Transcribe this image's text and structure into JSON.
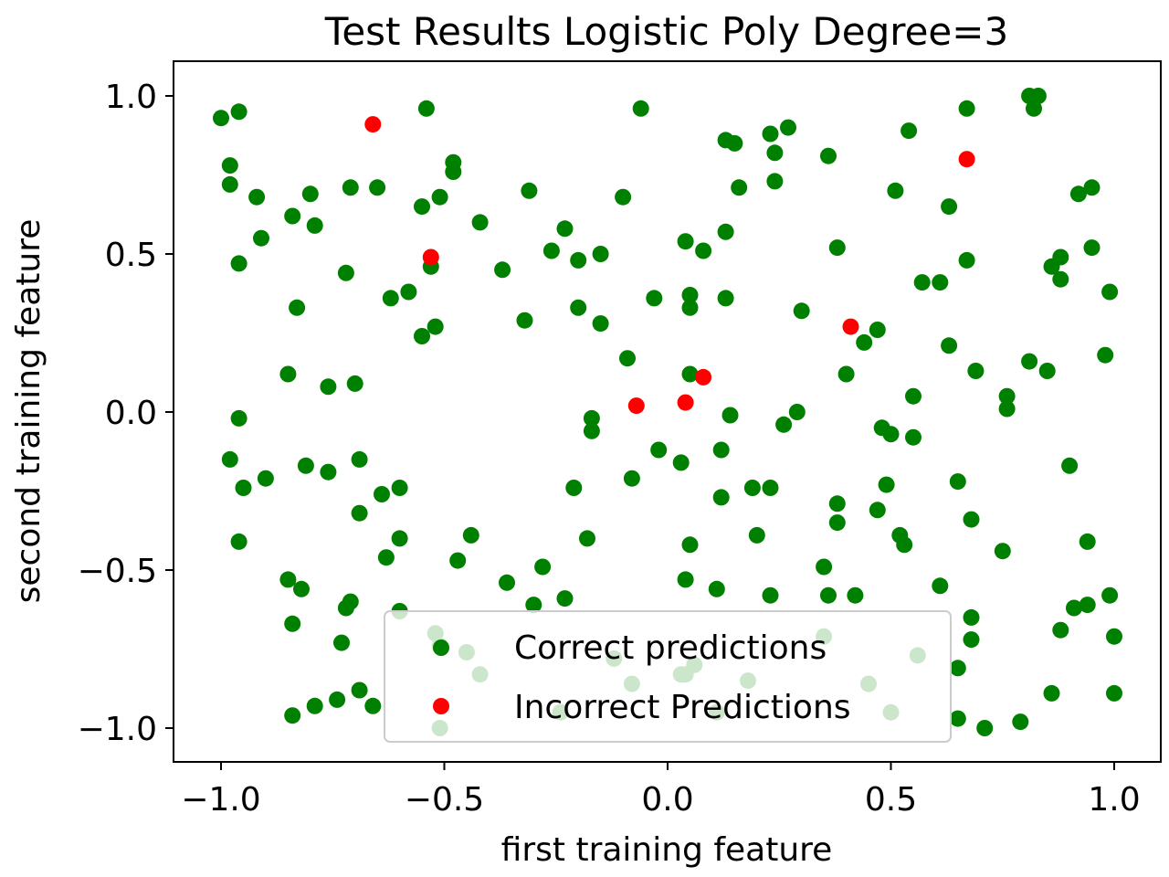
{
  "chart_data": {
    "type": "scatter",
    "title": "Test Results Logistic Poly Degree=3",
    "xlabel": "first training feature",
    "ylabel": "second training feature",
    "xlim": [
      -1.1,
      1.11
    ],
    "ylim": [
      -1.11,
      1.11
    ],
    "xticks": [
      -1.0,
      -0.5,
      0.0,
      0.5,
      1.0
    ],
    "xtick_labels": [
      "−1.0",
      "−0.5",
      "0.0",
      "0.5",
      "1.0"
    ],
    "yticks": [
      -1.0,
      -0.5,
      0.0,
      0.5,
      1.0
    ],
    "ytick_labels": [
      "−1.0",
      "−0.5",
      "0.0",
      "0.5",
      "1.0"
    ],
    "grid": false,
    "legend_position": "bottom-center",
    "series": [
      {
        "name": "Correct predictions",
        "color": "#008000",
        "points": [
          [
            -1.0,
            0.93
          ],
          [
            -0.96,
            0.95
          ],
          [
            -0.54,
            0.96
          ],
          [
            -0.06,
            0.96
          ],
          [
            0.67,
            0.96
          ],
          [
            0.81,
            1.0
          ],
          [
            0.83,
            1.0
          ],
          [
            0.82,
            0.96
          ],
          [
            0.13,
            0.86
          ],
          [
            0.15,
            0.85
          ],
          [
            0.23,
            0.88
          ],
          [
            0.27,
            0.9
          ],
          [
            0.24,
            0.82
          ],
          [
            0.54,
            0.89
          ],
          [
            0.36,
            0.81
          ],
          [
            -0.98,
            0.78
          ],
          [
            -0.48,
            0.79
          ],
          [
            -0.48,
            0.76
          ],
          [
            -0.98,
            0.72
          ],
          [
            -0.92,
            0.68
          ],
          [
            -0.8,
            0.69
          ],
          [
            -0.71,
            0.71
          ],
          [
            -0.65,
            0.71
          ],
          [
            -0.31,
            0.7
          ],
          [
            -0.51,
            0.68
          ],
          [
            -0.55,
            0.65
          ],
          [
            -0.1,
            0.68
          ],
          [
            0.24,
            0.73
          ],
          [
            0.16,
            0.71
          ],
          [
            0.51,
            0.7
          ],
          [
            0.95,
            0.71
          ],
          [
            0.92,
            0.69
          ],
          [
            0.63,
            0.65
          ],
          [
            -0.84,
            0.62
          ],
          [
            -0.79,
            0.59
          ],
          [
            -0.42,
            0.6
          ],
          [
            -0.23,
            0.58
          ],
          [
            -0.91,
            0.55
          ],
          [
            0.04,
            0.54
          ],
          [
            0.13,
            0.57
          ],
          [
            -0.26,
            0.51
          ],
          [
            -0.15,
            0.5
          ],
          [
            0.08,
            0.51
          ],
          [
            0.38,
            0.52
          ],
          [
            0.95,
            0.52
          ],
          [
            -0.96,
            0.47
          ],
          [
            -0.72,
            0.44
          ],
          [
            -0.53,
            0.46
          ],
          [
            -0.37,
            0.45
          ],
          [
            -0.2,
            0.48
          ],
          [
            0.67,
            0.48
          ],
          [
            0.88,
            0.49
          ],
          [
            0.86,
            0.46
          ],
          [
            0.88,
            0.42
          ],
          [
            0.57,
            0.41
          ],
          [
            0.61,
            0.41
          ],
          [
            -0.62,
            0.36
          ],
          [
            -0.58,
            0.38
          ],
          [
            -0.83,
            0.33
          ],
          [
            -0.2,
            0.33
          ],
          [
            -0.03,
            0.36
          ],
          [
            0.05,
            0.37
          ],
          [
            0.05,
            0.33
          ],
          [
            0.13,
            0.36
          ],
          [
            0.3,
            0.32
          ],
          [
            0.99,
            0.38
          ],
          [
            -0.32,
            0.29
          ],
          [
            -0.15,
            0.28
          ],
          [
            -0.52,
            0.27
          ],
          [
            -0.55,
            0.24
          ],
          [
            0.47,
            0.26
          ],
          [
            0.44,
            0.22
          ],
          [
            0.63,
            0.21
          ],
          [
            -0.85,
            0.12
          ],
          [
            -0.7,
            0.09
          ],
          [
            -0.76,
            0.08
          ],
          [
            -0.09,
            0.17
          ],
          [
            0.05,
            0.12
          ],
          [
            0.4,
            0.12
          ],
          [
            0.81,
            0.16
          ],
          [
            0.85,
            0.13
          ],
          [
            0.69,
            0.13
          ],
          [
            0.98,
            0.18
          ],
          [
            -0.96,
            -0.02
          ],
          [
            -0.17,
            -0.02
          ],
          [
            -0.17,
            -0.06
          ],
          [
            0.14,
            -0.01
          ],
          [
            0.26,
            -0.04
          ],
          [
            0.29,
            0.0
          ],
          [
            0.55,
            0.05
          ],
          [
            0.76,
            0.05
          ],
          [
            0.76,
            0.01
          ],
          [
            -0.98,
            -0.15
          ],
          [
            -0.69,
            -0.15
          ],
          [
            -0.81,
            -0.17
          ],
          [
            -0.76,
            -0.19
          ],
          [
            -0.9,
            -0.21
          ],
          [
            -0.95,
            -0.24
          ],
          [
            -0.02,
            -0.12
          ],
          [
            0.03,
            -0.16
          ],
          [
            0.12,
            -0.12
          ],
          [
            0.48,
            -0.05
          ],
          [
            0.5,
            -0.07
          ],
          [
            0.55,
            -0.08
          ],
          [
            -0.08,
            -0.21
          ],
          [
            -0.21,
            -0.24
          ],
          [
            -0.64,
            -0.26
          ],
          [
            -0.6,
            -0.24
          ],
          [
            0.12,
            -0.27
          ],
          [
            0.19,
            -0.24
          ],
          [
            0.23,
            -0.24
          ],
          [
            0.49,
            -0.23
          ],
          [
            0.65,
            -0.22
          ],
          [
            0.9,
            -0.17
          ],
          [
            -0.69,
            -0.32
          ],
          [
            -0.44,
            -0.39
          ],
          [
            -0.6,
            -0.4
          ],
          [
            -0.18,
            -0.4
          ],
          [
            -0.96,
            -0.41
          ],
          [
            0.38,
            -0.29
          ],
          [
            0.38,
            -0.35
          ],
          [
            0.47,
            -0.31
          ],
          [
            0.68,
            -0.34
          ],
          [
            0.52,
            -0.39
          ],
          [
            0.53,
            -0.42
          ],
          [
            0.94,
            -0.41
          ],
          [
            0.05,
            -0.42
          ],
          [
            0.2,
            -0.39
          ],
          [
            -0.63,
            -0.46
          ],
          [
            -0.47,
            -0.47
          ],
          [
            -0.28,
            -0.49
          ],
          [
            -0.85,
            -0.53
          ],
          [
            -0.82,
            -0.56
          ],
          [
            -0.36,
            -0.54
          ],
          [
            0.04,
            -0.53
          ],
          [
            0.11,
            -0.56
          ],
          [
            0.35,
            -0.49
          ],
          [
            0.75,
            -0.44
          ],
          [
            0.61,
            -0.55
          ],
          [
            -0.6,
            -0.63
          ],
          [
            -0.72,
            -0.62
          ],
          [
            -0.71,
            -0.6
          ],
          [
            -0.3,
            -0.61
          ],
          [
            -0.23,
            -0.59
          ],
          [
            0.23,
            -0.58
          ],
          [
            0.36,
            -0.58
          ],
          [
            0.42,
            -0.58
          ],
          [
            0.91,
            -0.62
          ],
          [
            0.94,
            -0.61
          ],
          [
            0.99,
            -0.58
          ],
          [
            -0.84,
            -0.67
          ],
          [
            -0.73,
            -0.73
          ],
          [
            -0.52,
            -0.7
          ],
          [
            -0.51,
            -0.74
          ],
          [
            -0.45,
            -0.76
          ],
          [
            -0.42,
            -0.83
          ],
          [
            -0.12,
            -0.78
          ],
          [
            -0.08,
            -0.86
          ],
          [
            0.03,
            -0.83
          ],
          [
            0.04,
            -0.83
          ],
          [
            0.06,
            -0.8
          ],
          [
            0.18,
            -0.85
          ],
          [
            0.35,
            -0.71
          ],
          [
            0.45,
            -0.86
          ],
          [
            0.56,
            -0.77
          ],
          [
            0.68,
            -0.65
          ],
          [
            0.68,
            -0.72
          ],
          [
            0.65,
            -0.81
          ],
          [
            0.88,
            -0.69
          ],
          [
            1.0,
            -0.71
          ],
          [
            -0.84,
            -0.96
          ],
          [
            -0.79,
            -0.93
          ],
          [
            -0.74,
            -0.91
          ],
          [
            -0.69,
            -0.88
          ],
          [
            -0.66,
            -0.93
          ],
          [
            -0.51,
            -1.0
          ],
          [
            -0.24,
            -0.95
          ],
          [
            0.11,
            -0.95
          ],
          [
            0.5,
            -0.95
          ],
          [
            0.65,
            -0.97
          ],
          [
            0.71,
            -1.0
          ],
          [
            0.79,
            -0.98
          ],
          [
            0.86,
            -0.89
          ],
          [
            1.0,
            -0.89
          ]
        ]
      },
      {
        "name": "Incorrect Predictions",
        "color": "#ff0000",
        "points": [
          [
            -0.66,
            0.91
          ],
          [
            0.67,
            0.8
          ],
          [
            -0.53,
            0.49
          ],
          [
            0.41,
            0.27
          ],
          [
            0.08,
            0.11
          ],
          [
            -0.07,
            0.02
          ],
          [
            0.04,
            0.03
          ]
        ]
      }
    ]
  }
}
